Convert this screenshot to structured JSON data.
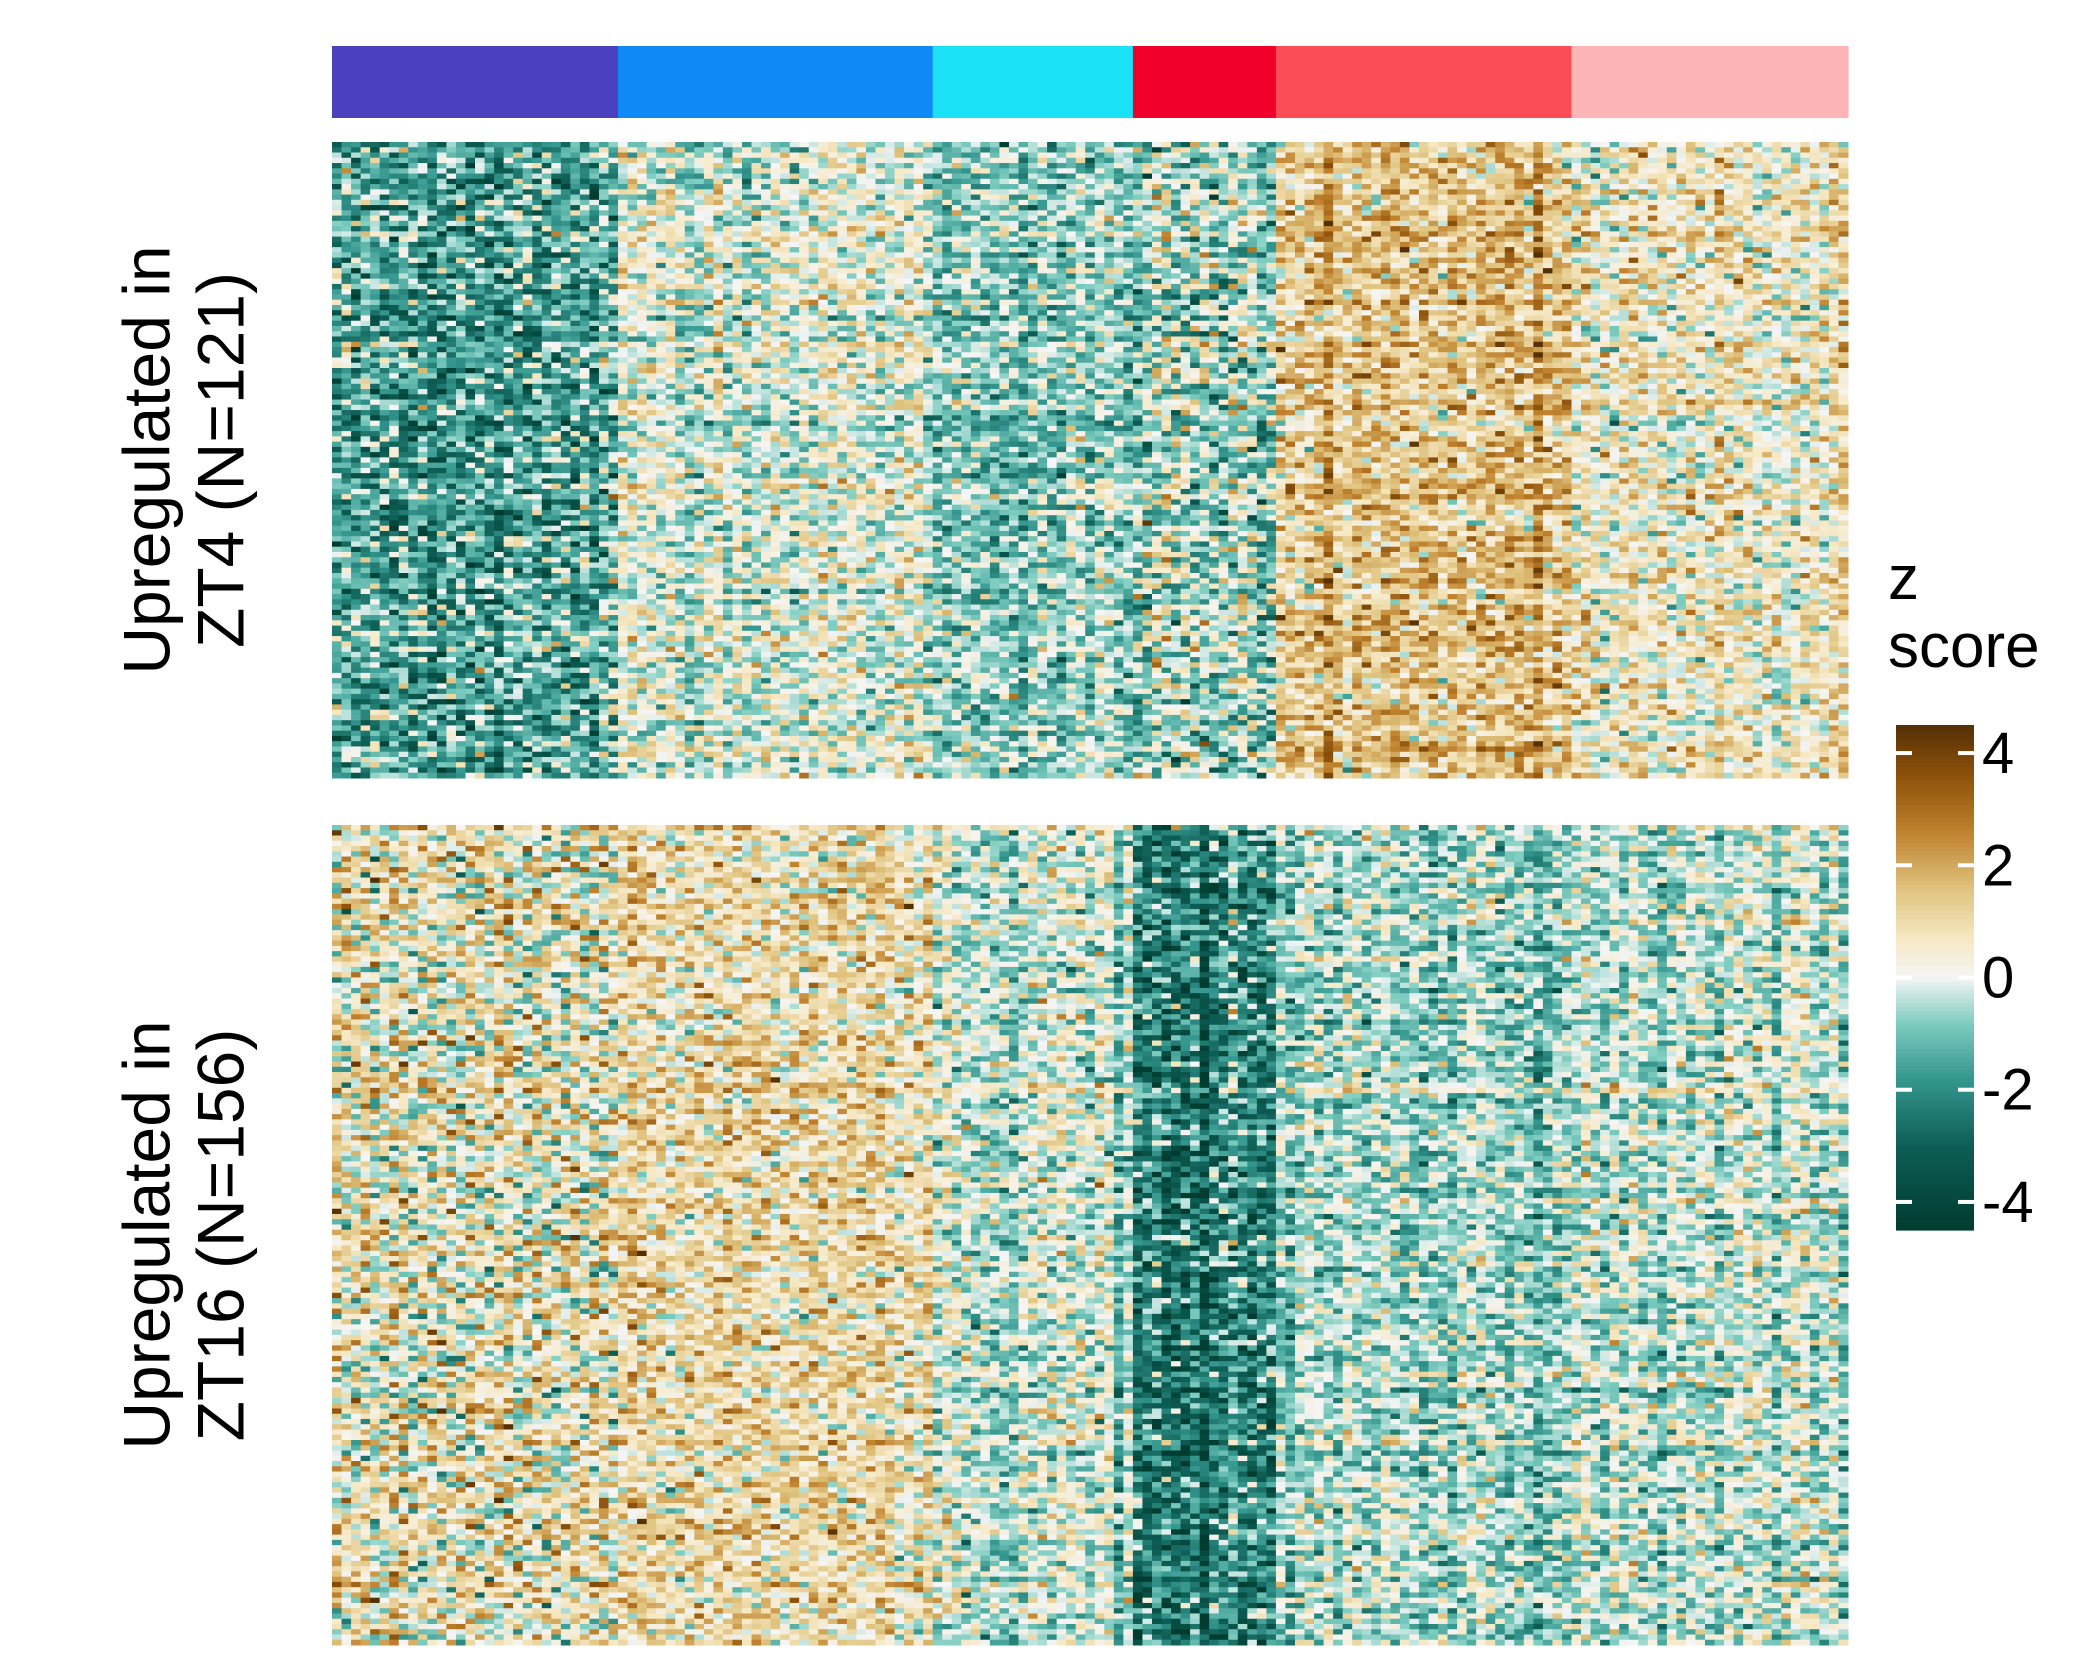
{
  "chart_data": {
    "type": "heatmap",
    "column_groups": [
      {
        "color": "#4B40BE",
        "columns": 30
      },
      {
        "color": "#0F8AF5",
        "columns": 33
      },
      {
        "color": "#1BE1F7",
        "columns": 21
      },
      {
        "color": "#F0002B",
        "columns": 15
      },
      {
        "color": "#FA4D55",
        "columns": 31
      },
      {
        "color": "#FCB4B6",
        "columns": 29
      }
    ],
    "row_blocks": [
      {
        "label_line1": "Upregulated in",
        "label_line2": "ZT4 (N=121)",
        "n_rows": 121,
        "group_mean_z": [
          -1.6,
          0.0,
          -0.8,
          -0.6,
          1.3,
          0.5
        ],
        "strong_columns": [
          {
            "column": 104,
            "shift": 1.2
          },
          {
            "column": 126,
            "shift": 1.0
          }
        ]
      },
      {
        "label_line1": "Upregulated in",
        "label_line2": "ZT16 (N=156)",
        "n_rows": 156,
        "group_mean_z": [
          0.5,
          0.9,
          -0.2,
          -2.1,
          -0.6,
          -0.3
        ],
        "strong_columns": [
          {
            "column": 82,
            "shift": -1.5
          },
          {
            "column": 91,
            "shift": -1.2
          }
        ]
      }
    ],
    "colorbar": {
      "title_line1": "z",
      "title_line2": "score",
      "min": -4.5,
      "max": 4.5,
      "ticks": [
        4,
        2,
        0,
        -2,
        -4
      ],
      "colors": [
        {
          "z": -4.5,
          "color": "#003C30"
        },
        {
          "z": -3.0,
          "color": "#0E5E55"
        },
        {
          "z": -1.8,
          "color": "#35978F"
        },
        {
          "z": -0.8,
          "color": "#80CDC1"
        },
        {
          "z": 0.0,
          "color": "#F5F5F5"
        },
        {
          "z": 0.7,
          "color": "#F6E8C3"
        },
        {
          "z": 1.6,
          "color": "#DFC27D"
        },
        {
          "z": 2.6,
          "color": "#BF812D"
        },
        {
          "z": 3.6,
          "color": "#8C510A"
        },
        {
          "z": 4.5,
          "color": "#543005"
        }
      ]
    }
  }
}
